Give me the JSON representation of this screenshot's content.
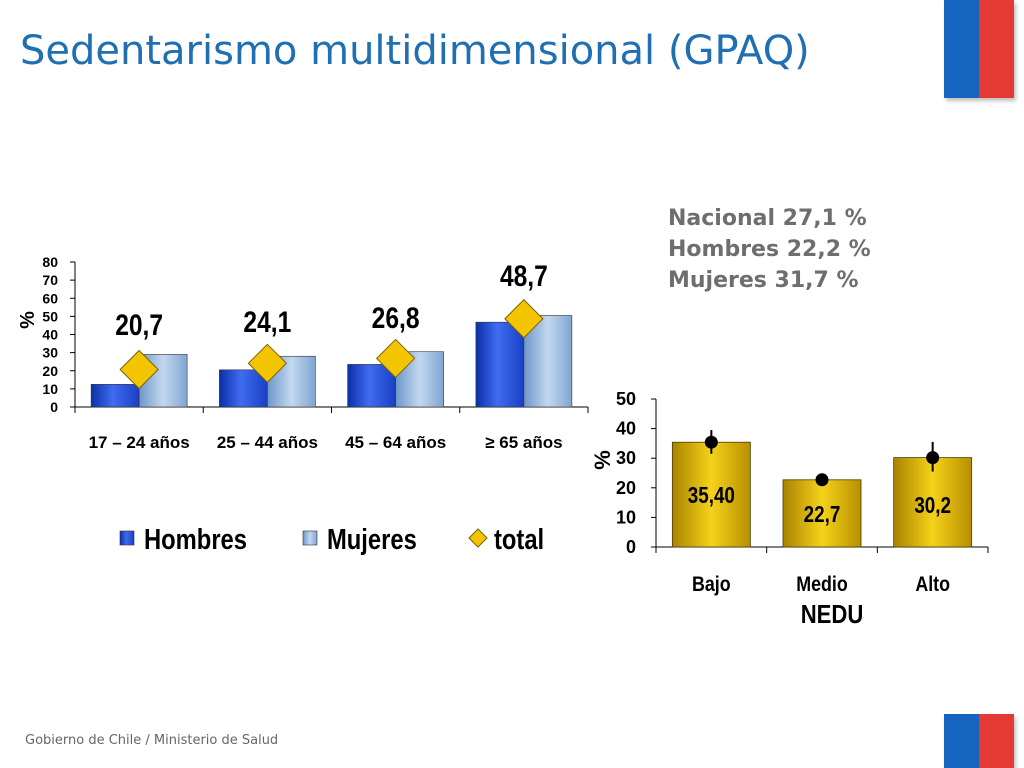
{
  "title": "Sedentarismo multidimensional (GPAQ)",
  "footer": "Gobierno de Chile / Ministerio de Salud",
  "stats": [
    "Nacional 27,1  %",
    "Hombres 22,2  %",
    "Mujeres 31,7  %"
  ],
  "colors": {
    "title": "#1f6fb2",
    "hombres": "#1f4fd8",
    "mujeres": "#8fb4dc",
    "total": "#f2c500",
    "nedu_bar": "#d4ac00",
    "flag_blue": "#1565c0",
    "flag_red": "#e53935"
  },
  "chart_data": [
    {
      "type": "bar",
      "title": "",
      "xlabel": "",
      "ylabel": "%",
      "ylim": [
        0,
        80
      ],
      "yticks": [
        "0",
        "10",
        "20",
        "30",
        "40",
        "50",
        "60",
        "70",
        "80"
      ],
      "categories": [
        "17 – 24 años",
        "25 – 44 años",
        "45 – 64 años",
        "≥ 65 años"
      ],
      "series": [
        {
          "name": "Hombres",
          "values": [
            12.5,
            20.5,
            23.5,
            46.8
          ]
        },
        {
          "name": "Mujeres",
          "values": [
            29,
            28,
            30.5,
            50.5
          ]
        },
        {
          "name": "total",
          "type": "scatter",
          "values": [
            20.7,
            24.1,
            26.8,
            48.7
          ],
          "labels": [
            "20,7",
            "24,1",
            "26,8",
            "48,7"
          ]
        }
      ],
      "legend_position": "bottom"
    },
    {
      "type": "bar",
      "title": "",
      "xlabel": "NEDU",
      "ylabel": "%",
      "ylim": [
        0,
        50
      ],
      "yticks": [
        "0",
        "10",
        "20",
        "30",
        "40",
        "50"
      ],
      "categories": [
        "Bajo",
        "Medio",
        "Alto"
      ],
      "values": [
        35.4,
        22.7,
        30.2
      ],
      "labels": [
        "35,40",
        "22,7",
        "30,2"
      ],
      "markers": [
        35.4,
        22.7,
        30.2
      ],
      "error_low": [
        31.5,
        21.5,
        25.5
      ],
      "error_high": [
        39.5,
        24,
        35.5
      ]
    }
  ]
}
